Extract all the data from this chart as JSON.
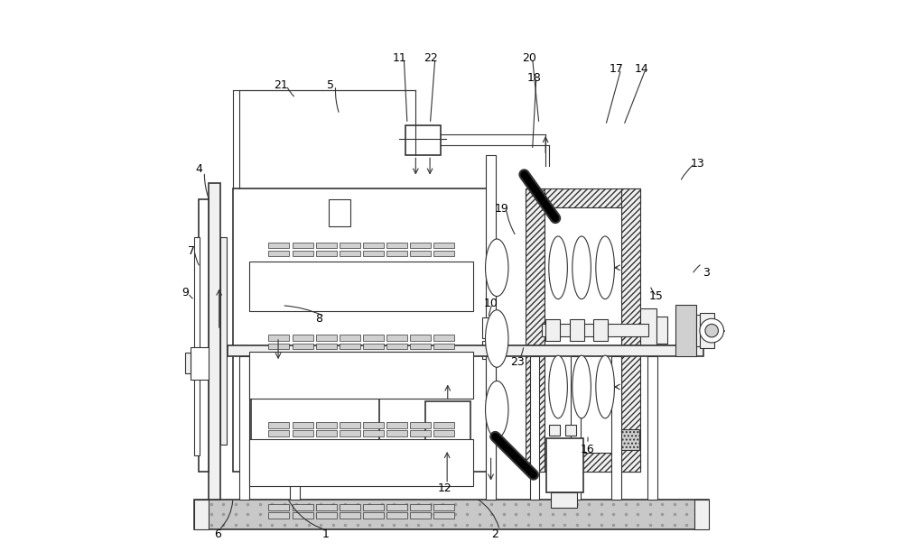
{
  "bg_color": "#ffffff",
  "line_color": "#333333",
  "hatch_color": "#555555",
  "fill_light": "#f0f0f0",
  "fill_medium": "#d0d0d0",
  "fill_dark": "#888888",
  "fill_black": "#111111",
  "fill_gravel": "#c8c8c8"
}
